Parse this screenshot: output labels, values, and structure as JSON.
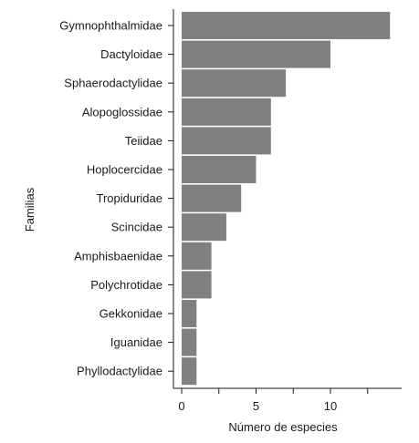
{
  "chart_data": {
    "type": "bar",
    "orientation": "horizontal",
    "categories": [
      "Gymnophthalmidae",
      "Dactyloidae",
      "Sphaerodactylidae",
      "Alopoglossidae",
      "Teiidae",
      "Hoplocercidae",
      "Tropiduridae",
      "Scincidae",
      "Amphisbaenidae",
      "Polychrotidae",
      "Gekkonidae",
      "Iguanidae",
      "Phyllodactylidae"
    ],
    "values": [
      14,
      10,
      7,
      6,
      6,
      5,
      4,
      3,
      2,
      2,
      1,
      1,
      1
    ],
    "xlabel": "Número de especies",
    "ylabel": "Familias",
    "xlim": [
      -0.6,
      14.2
    ],
    "xticks": [
      0,
      5,
      10
    ],
    "xticks_minor": [
      2.5,
      7.5,
      12.5
    ],
    "bar_color": "#808080",
    "grid": false
  }
}
